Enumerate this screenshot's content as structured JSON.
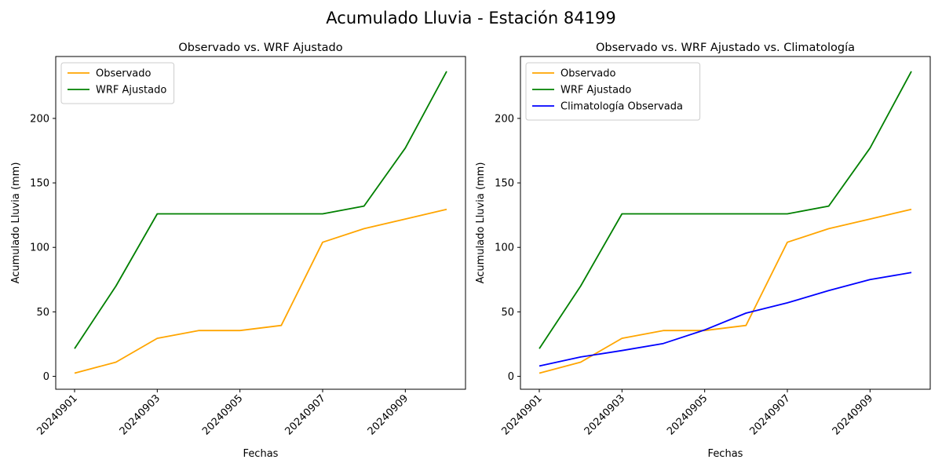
{
  "figure": {
    "suptitle": "Acumulado Lluvia - Estación 84199"
  },
  "colors": {
    "observado": "#ffa500",
    "wrf": "#008000",
    "clima": "#0000ff"
  },
  "chart_data": [
    {
      "type": "line",
      "title": "Observado vs. WRF Ajustado",
      "xlabel": "Fechas",
      "ylabel": "Acumulado Lluvia (mm)",
      "x": [
        "20240901",
        "20240902",
        "20240903",
        "20240904",
        "20240905",
        "20240906",
        "20240907",
        "20240908",
        "20240909",
        "20240910"
      ],
      "xticks": [
        "20240901",
        "20240903",
        "20240905",
        "20240907",
        "20240909"
      ],
      "yticks": [
        0,
        50,
        100,
        150,
        200
      ],
      "ylim": [
        -10,
        248
      ],
      "grid": false,
      "legend_position": "upper left",
      "series": [
        {
          "name": "Observado",
          "color": "#ffa500",
          "values": [
            2.5,
            11,
            29.5,
            35.5,
            35.5,
            39.5,
            104,
            114.5,
            122,
            129.5
          ]
        },
        {
          "name": "WRF Ajustado",
          "color": "#008000",
          "values": [
            21.5,
            70,
            126,
            126,
            126,
            126,
            126,
            132,
            177,
            236.5
          ]
        }
      ]
    },
    {
      "type": "line",
      "title": "Observado vs. WRF Ajustado vs. Climatología",
      "xlabel": "Fechas",
      "ylabel": "Acumulado Lluvia (mm)",
      "x": [
        "20240901",
        "20240902",
        "20240903",
        "20240904",
        "20240905",
        "20240906",
        "20240907",
        "20240908",
        "20240909",
        "20240910"
      ],
      "xticks": [
        "20240901",
        "20240903",
        "20240905",
        "20240907",
        "20240909"
      ],
      "yticks": [
        0,
        50,
        100,
        150,
        200
      ],
      "ylim": [
        -10,
        248
      ],
      "grid": false,
      "legend_position": "upper left",
      "series": [
        {
          "name": "Observado",
          "color": "#ffa500",
          "values": [
            2.5,
            11,
            29.5,
            35.5,
            35.5,
            39.5,
            104,
            114.5,
            122,
            129.5
          ]
        },
        {
          "name": "WRF Ajustado",
          "color": "#008000",
          "values": [
            21.5,
            70,
            126,
            126,
            126,
            126,
            126,
            132,
            177,
            236.5
          ]
        },
        {
          "name": "Climatología Observada",
          "color": "#0000ff",
          "values": [
            8,
            15,
            20,
            25.5,
            36,
            49,
            57,
            66.5,
            75,
            80.5
          ]
        }
      ]
    }
  ]
}
